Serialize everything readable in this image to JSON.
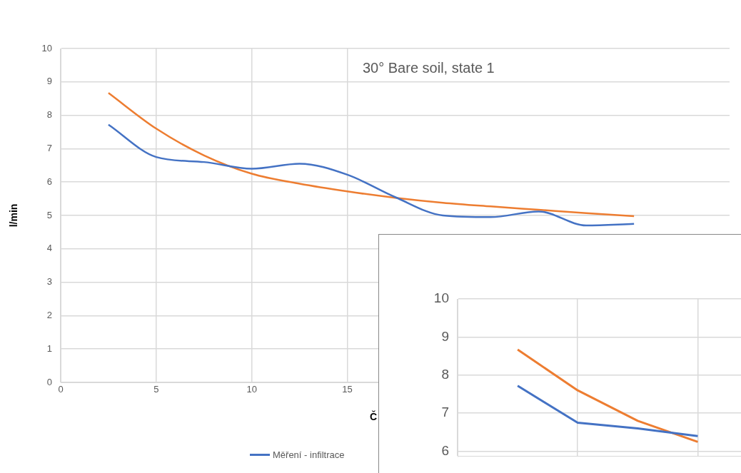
{
  "chart_data": [
    {
      "type": "line",
      "title": "30° Bare soil, state 1",
      "xlabel": "Č",
      "ylabel": "l/min",
      "xlim": [
        0,
        35
      ],
      "xticks": [
        0,
        5,
        10,
        15
      ],
      "ylim": [
        0,
        10
      ],
      "yticks": [
        0,
        1,
        2,
        3,
        4,
        5,
        6,
        7,
        8,
        9,
        10
      ],
      "grid": true,
      "legend": "bottom",
      "marker": "none",
      "line_style": "solid",
      "series": [
        {
          "name": "Měření - infiltrace",
          "color": "#4472c4",
          "x": [
            2.5,
            5,
            7.5,
            10,
            12.5,
            15,
            17.5,
            20,
            22.5,
            25,
            27.5,
            30
          ],
          "values": [
            7.72,
            6.75,
            6.6,
            6.4,
            6.55,
            6.22,
            5.55,
            5.0,
            4.95,
            5.12,
            4.7,
            4.75
          ]
        },
        {
          "color": "#ed7d31",
          "x": [
            2.5,
            5,
            7.5,
            10,
            12.5,
            15,
            17.5,
            20,
            22.5,
            25,
            27.5,
            30
          ],
          "values": [
            8.67,
            7.6,
            6.8,
            6.25,
            5.95,
            5.72,
            5.53,
            5.38,
            5.27,
            5.17,
            5.07,
            4.98
          ]
        }
      ]
    },
    {
      "type": "line",
      "categories": [
        null,
        null,
        null,
        null,
        null
      ],
      "ylim": [
        5.87,
        10
      ],
      "yticks": [
        6,
        7,
        8,
        9,
        10
      ],
      "grid": true,
      "tick_labels": "y",
      "marker": "none",
      "line_style": "solid",
      "series": [
        {
          "color": "#4472c4",
          "values": [
            null,
            7.72,
            6.75,
            6.6,
            6.4
          ]
        },
        {
          "color": "#ed7d31",
          "values": [
            null,
            8.67,
            7.6,
            6.8,
            6.25
          ]
        }
      ]
    }
  ]
}
